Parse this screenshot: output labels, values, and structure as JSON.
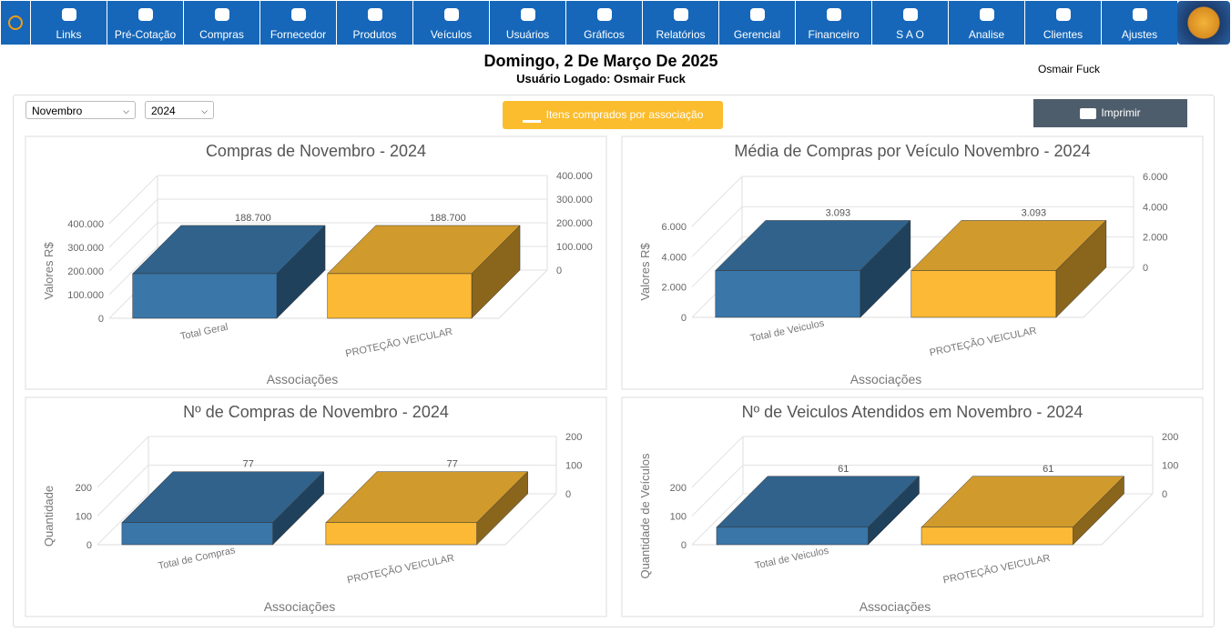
{
  "nav": {
    "items": [
      "Links",
      "Pré-Cotação",
      "Compras",
      "Fornecedor",
      "Produtos",
      "Veículos",
      "Usuários",
      "Gráficos",
      "Relatórios",
      "Gerencial",
      "Financeiro",
      "S A O",
      "Analise",
      "Clientes",
      "Ajustes"
    ]
  },
  "header": {
    "date": "Domingo, 2 De Março De 2025",
    "logged": "Usuário Logado: Osmair Fuck",
    "user": "Osmair Fuck"
  },
  "filters": {
    "month": "Novembro",
    "year": "2024"
  },
  "buttons": {
    "report": "Itens comprados por associação",
    "print": "Imprimir"
  },
  "chart_data": [
    {
      "type": "bar3d",
      "title": "Compras de Novembro - 2024",
      "ylabel": "Valores R$",
      "xlabel": "Associações",
      "categories": [
        "Total Geral",
        "PROTEÇÃO VEICULAR"
      ],
      "values": [
        188700,
        188700
      ],
      "value_labels": [
        "188.700",
        "188.700"
      ],
      "colors": [
        "#3a76a8",
        "#fbb935"
      ],
      "ylim": [
        0,
        400000
      ],
      "yticks": [
        0,
        {
          "value": 100000,
          "label": "100.000"
        },
        {
          "value": 200000,
          "label": "200.000"
        },
        {
          "value": 300000,
          "label": "300.000"
        },
        {
          "value": 400000,
          "label": "400.000"
        }
      ]
    },
    {
      "type": "bar3d",
      "title": "Média de Compras por Veículo Novembro - 2024",
      "ylabel": "Valores R$",
      "xlabel": "Associações",
      "categories": [
        "Total de Veiculos",
        "PROTEÇÃO VEICULAR"
      ],
      "values": [
        3093,
        3093
      ],
      "value_labels": [
        "3.093",
        "3.093"
      ],
      "colors": [
        "#3a76a8",
        "#fbb935"
      ],
      "ylim": [
        0,
        6000
      ],
      "yticks": [
        0,
        {
          "value": 2000,
          "label": "2.000"
        },
        {
          "value": 4000,
          "label": "4.000"
        },
        {
          "value": 6000,
          "label": "6.000"
        }
      ]
    },
    {
      "type": "bar3d",
      "title": "Nº de Compras de Novembro - 2024",
      "ylabel": "Quantidade",
      "xlabel": "Associações",
      "categories": [
        "Total de Compras",
        "PROTEÇÃO VEICULAR"
      ],
      "values": [
        77,
        77
      ],
      "colors": [
        "#3a76a8",
        "#fbb935"
      ],
      "ylim": [
        0,
        200
      ],
      "yticks": [
        0,
        100,
        200
      ]
    },
    {
      "type": "bar3d",
      "title": "Nº de Veiculos Atendidos em Novembro - 2024",
      "ylabel": "Quantidade de Veículos",
      "xlabel": "Associações",
      "categories": [
        "Total de Veiculos",
        "PROTEÇÃO VEICULAR"
      ],
      "values": [
        61,
        61
      ],
      "colors": [
        "#3a76a8",
        "#fbb935"
      ],
      "ylim": [
        0,
        200
      ],
      "yticks": [
        0,
        100,
        200
      ]
    }
  ]
}
